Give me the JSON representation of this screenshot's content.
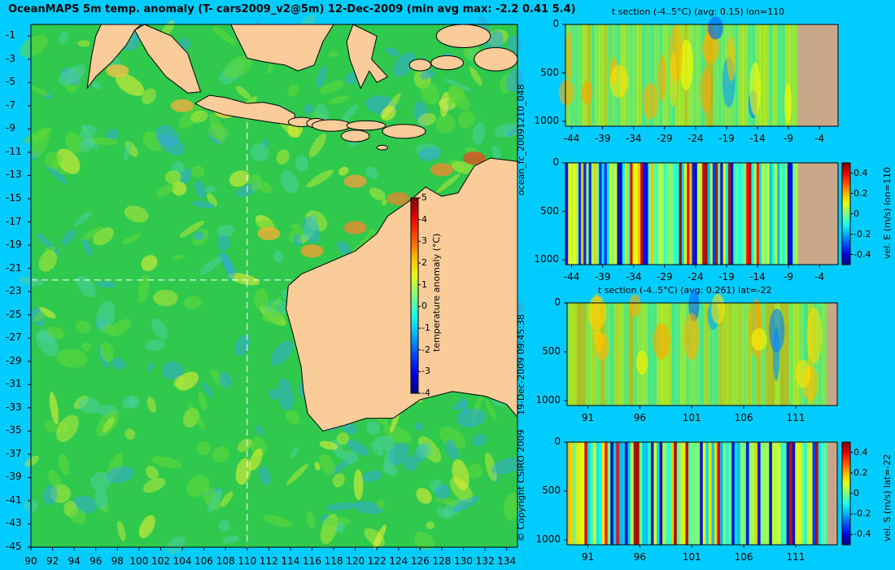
{
  "title": "OceanMAPS 5m temp. anomaly (T- cars2009_v2@5m) 12-Dec-2009 (min avg max: -2.2 0.41 5.4)",
  "colors": {
    "background": "#00ccff",
    "land": "#f9cc9a",
    "section_land": "#c8a888"
  },
  "chart_data": [
    {
      "type": "heatmap",
      "id": "map",
      "x_ticks": [
        90,
        92,
        94,
        96,
        98,
        100,
        102,
        104,
        106,
        108,
        110,
        112,
        114,
        116,
        118,
        120,
        122,
        124,
        126,
        128,
        130,
        132,
        134
      ],
      "y_ticks": [
        -1,
        -3,
        -5,
        -7,
        -9,
        -11,
        -13,
        -15,
        -17,
        -19,
        -21,
        -23,
        -25,
        -27,
        -29,
        -31,
        -33,
        -35,
        -37,
        -39,
        -41,
        -43,
        -45
      ],
      "xlim": [
        90,
        135
      ],
      "ylim": [
        -45,
        0
      ],
      "section_lon": 110,
      "section_lat": -22,
      "colorbar": {
        "label": "temperature anomaly (°C)",
        "ticks": [
          5,
          4,
          3,
          2,
          1,
          0,
          -1,
          -2,
          -3,
          -4
        ],
        "range": [
          -4,
          5
        ]
      }
    },
    {
      "type": "heatmap",
      "id": "sec1",
      "title": "t section (-4..5°C) (avg: 0.15) lon=110",
      "x_ticks": [
        "-44",
        "-39",
        "-34",
        "-29",
        "-24",
        "-19",
        "-14",
        "-9",
        "-4"
      ],
      "y_ticks": [
        "0",
        "500",
        "1000"
      ],
      "xlim": [
        -45,
        -1
      ],
      "ylim": [
        0,
        1050
      ],
      "land_from": -7.5
    },
    {
      "type": "heatmap",
      "id": "sec2",
      "x_ticks": [
        "-44",
        "-39",
        "-34",
        "-29",
        "-24",
        "-19",
        "-14",
        "-9",
        "-4"
      ],
      "y_ticks": [
        "0",
        "500",
        "1000"
      ],
      "xlim": [
        -45,
        -1
      ],
      "ylim": [
        0,
        1050
      ],
      "land_from": -7.5,
      "colorbar": {
        "label": "vel. E (m/s) lon=110",
        "ticks": [
          "0.4",
          "0.2",
          "0",
          "-0.2",
          "-0.4"
        ],
        "range": [
          -0.5,
          0.5
        ]
      }
    },
    {
      "type": "heatmap",
      "id": "sec3",
      "title": "t section (-4..5°C) (avg: 0.261) lat=-22",
      "x_ticks": [
        "91",
        "96",
        "101",
        "106",
        "111"
      ],
      "y_ticks": [
        "0",
        "500",
        "1000"
      ],
      "xlim": [
        89,
        115
      ],
      "ylim": [
        0,
        1050
      ],
      "land_from": 114
    },
    {
      "type": "heatmap",
      "id": "sec4",
      "x_ticks": [
        "91",
        "96",
        "101",
        "106",
        "111"
      ],
      "y_ticks": [
        "0",
        "500",
        "1000"
      ],
      "xlim": [
        89,
        115
      ],
      "ylim": [
        0,
        1050
      ],
      "land_from": 114,
      "colorbar": {
        "label": "vel. S (m/s) lat=-22",
        "ticks": [
          "0.4",
          "0.2",
          "0",
          "-0.2",
          "-0.4"
        ],
        "range": [
          -0.5,
          0.5
        ]
      }
    }
  ],
  "side_labels": {
    "forecast_id": "ocean_fc_20091210_048",
    "timestamp": "19-Dec-2009 09:45:38",
    "copyright": "© Copyright CSIRO 2009"
  }
}
